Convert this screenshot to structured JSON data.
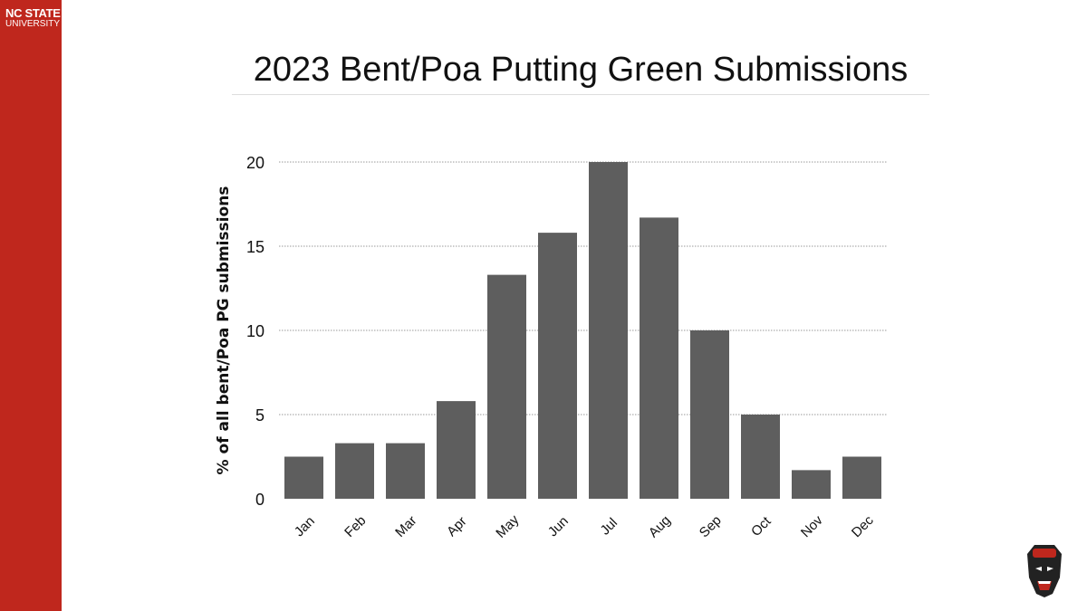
{
  "logo": {
    "line1": "NC STATE",
    "line2": "UNIVERSITY"
  },
  "colors": {
    "sidebar": "#bf271d",
    "bar": "#5e5e5e",
    "grid": "#999999"
  },
  "chart_data": {
    "type": "bar",
    "title": "2023 Bent/Poa Putting Green Submissions",
    "xlabel": "",
    "ylabel": "% of all bent/Poa PG submissions",
    "categories": [
      "Jan",
      "Feb",
      "Mar",
      "Apr",
      "May",
      "Jun",
      "Jul",
      "Aug",
      "Sep",
      "Oct",
      "Nov",
      "Dec"
    ],
    "values": [
      2.5,
      3.3,
      3.3,
      5.8,
      13.3,
      15.8,
      20.0,
      16.7,
      10.0,
      5.0,
      1.7,
      2.5
    ],
    "ylim": [
      0,
      20
    ],
    "yticks": [
      0,
      5,
      10,
      15,
      20
    ],
    "grid": true,
    "legend": "none"
  }
}
